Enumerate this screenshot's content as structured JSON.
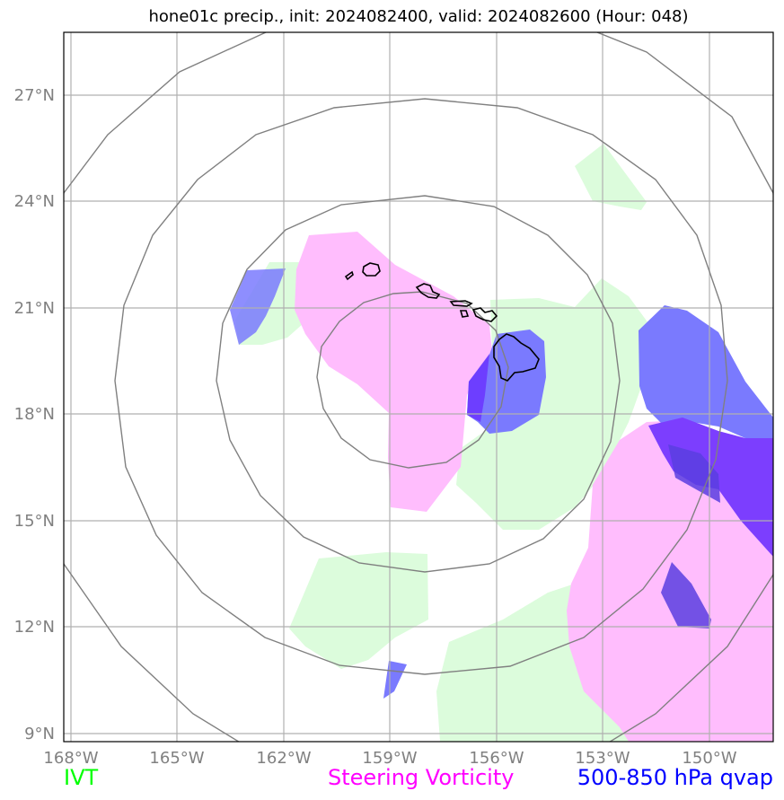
{
  "title": "hone01c precip., init: 2024082400, valid: 2024082600 (Hour: 048)",
  "lat_labels": [
    "27°N",
    "24°N",
    "21°N",
    "18°N",
    "15°N",
    "12°N",
    "9°N"
  ],
  "lon_labels": [
    "168°W",
    "165°W",
    "162°W",
    "159°W",
    "156°W",
    "153°W",
    "150°W"
  ],
  "legend": {
    "ivt": "IVT",
    "steering_vorticity": "Steering Vorticity",
    "qvap": "500-850 hPa qvap"
  },
  "colors": {
    "ivt": "#00ff00",
    "steering_vorticity": "#ff00ff",
    "qvap": "#0000ff",
    "ivt_fill": "#dcfcdc",
    "vort_fill": "#ffbdfd",
    "qvap_fill": "#7a7afe",
    "qvap_dark_fill": "#7c3efe",
    "grid": "#b0b0b0",
    "range_rings": "#808080",
    "coastline": "#000000"
  },
  "map_extent": {
    "lon_min_west": 168,
    "lon_max_west": 149,
    "lat_min_north": 8.8,
    "lat_max_north": 28.8
  }
}
